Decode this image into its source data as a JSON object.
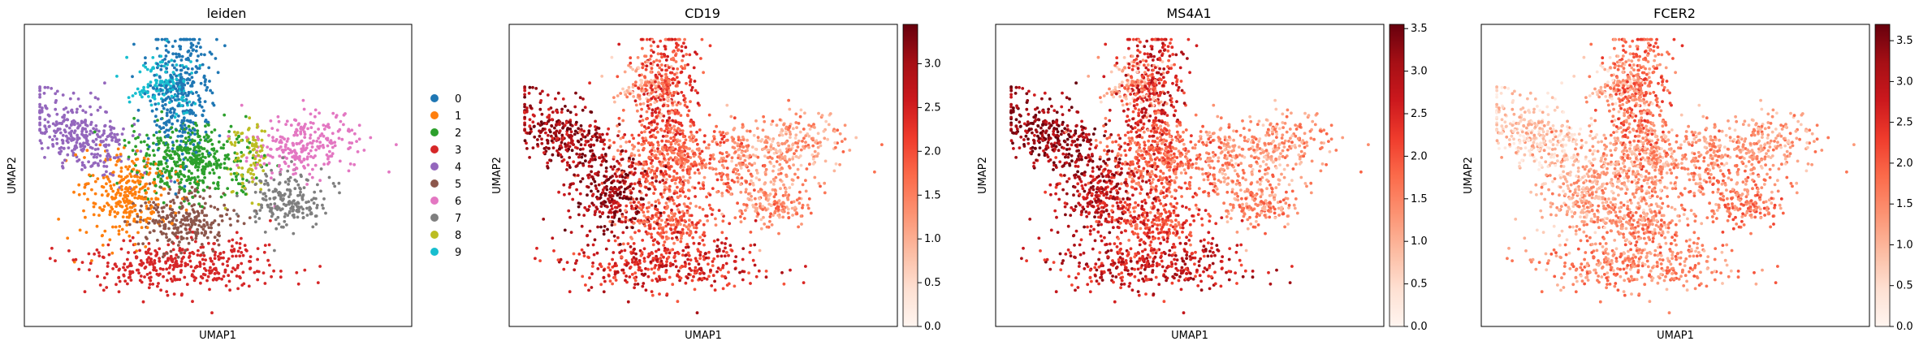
{
  "chart_data": [
    {
      "type": "scatter",
      "title": "leiden",
      "xlabel": "UMAP1",
      "ylabel": "UMAP2",
      "grid": false,
      "legend": {
        "placement": "right-outside",
        "entries": [
          {
            "label": "0",
            "color": "#1f77b4"
          },
          {
            "label": "1",
            "color": "#ff7f0e"
          },
          {
            "label": "2",
            "color": "#2ca02c"
          },
          {
            "label": "3",
            "color": "#d62728"
          },
          {
            "label": "4",
            "color": "#9467bd"
          },
          {
            "label": "5",
            "color": "#8c564b"
          },
          {
            "label": "6",
            "color": "#e377c2"
          },
          {
            "label": "7",
            "color": "#7f7f7f"
          },
          {
            "label": "8",
            "color": "#bcbd22"
          },
          {
            "label": "9",
            "color": "#17becf"
          }
        ]
      }
    },
    {
      "type": "scatter",
      "title": "CD19",
      "xlabel": "UMAP1",
      "ylabel": "UMAP2",
      "grid": false,
      "colormap": "Reds",
      "colorbar": {
        "min": 0.0,
        "max": 3.45,
        "ticks": [
          "0.0",
          "0.5",
          "1.0",
          "1.5",
          "2.0",
          "2.5",
          "3.0"
        ]
      }
    },
    {
      "type": "scatter",
      "title": "MS4A1",
      "xlabel": "UMAP1",
      "ylabel": "UMAP2",
      "grid": false,
      "colormap": "Reds",
      "colorbar": {
        "min": 0.0,
        "max": 3.55,
        "ticks": [
          "0.0",
          "0.5",
          "1.0",
          "1.5",
          "2.0",
          "2.5",
          "3.0",
          "3.5"
        ]
      }
    },
    {
      "type": "scatter",
      "title": "FCER2",
      "xlabel": "UMAP1",
      "ylabel": "UMAP2",
      "grid": false,
      "colormap": "Reds",
      "colorbar": {
        "min": 0.0,
        "max": 3.7,
        "ticks": [
          "0.0",
          "0.5",
          "1.0",
          "1.5",
          "2.0",
          "2.5",
          "3.0",
          "3.5"
        ]
      }
    }
  ]
}
